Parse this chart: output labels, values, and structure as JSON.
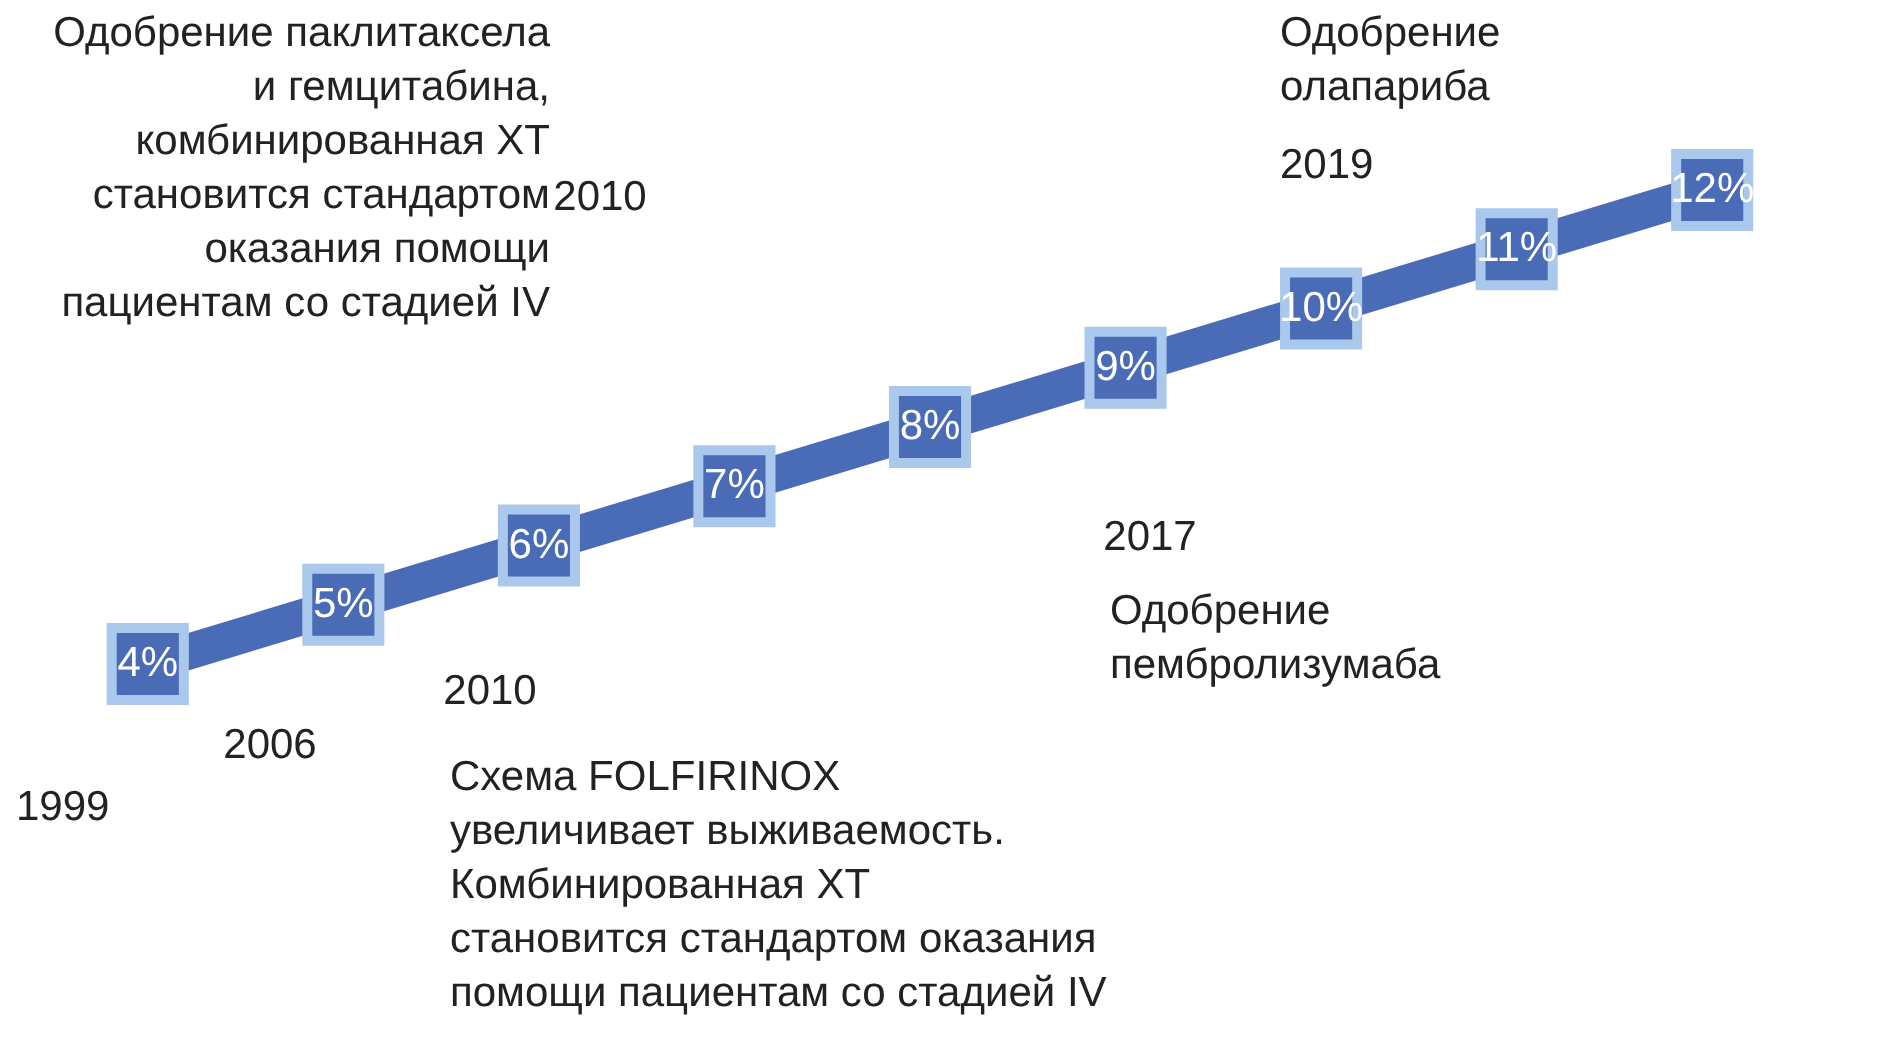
{
  "chart_data": {
    "type": "line",
    "categories": [
      null,
      null,
      null,
      null,
      null,
      null,
      null,
      null,
      null
    ],
    "series": [
      {
        "color": "#4a6bb5",
        "values": [
          4,
          5,
          6,
          7,
          8,
          9,
          10,
          11,
          12
        ],
        "value_labels": [
          "4%",
          "5%",
          "6%",
          "7%",
          "8%",
          "9%",
          "10%",
          "11%",
          "12%"
        ]
      }
    ],
    "marker": "square",
    "line_style": "solid",
    "annotations": [
      "1999",
      "2006",
      "2010",
      "Схема FOLFIRINOX\nувеличивает выживаемость.\nКомбинированная ХТ\nстановится стандартом оказания\nпомощи пациентам со стадией IV",
      "2010",
      "Одобрение паклитаксела\nи гемцитабина,\nкомбинированная ХТ\nстановится стандартом\nоказания помощи\nпациентам со стадией IV",
      "2017",
      "Одобрение\nпембролизумаба",
      "2019",
      "Одобрение\nолапариба"
    ]
  }
}
